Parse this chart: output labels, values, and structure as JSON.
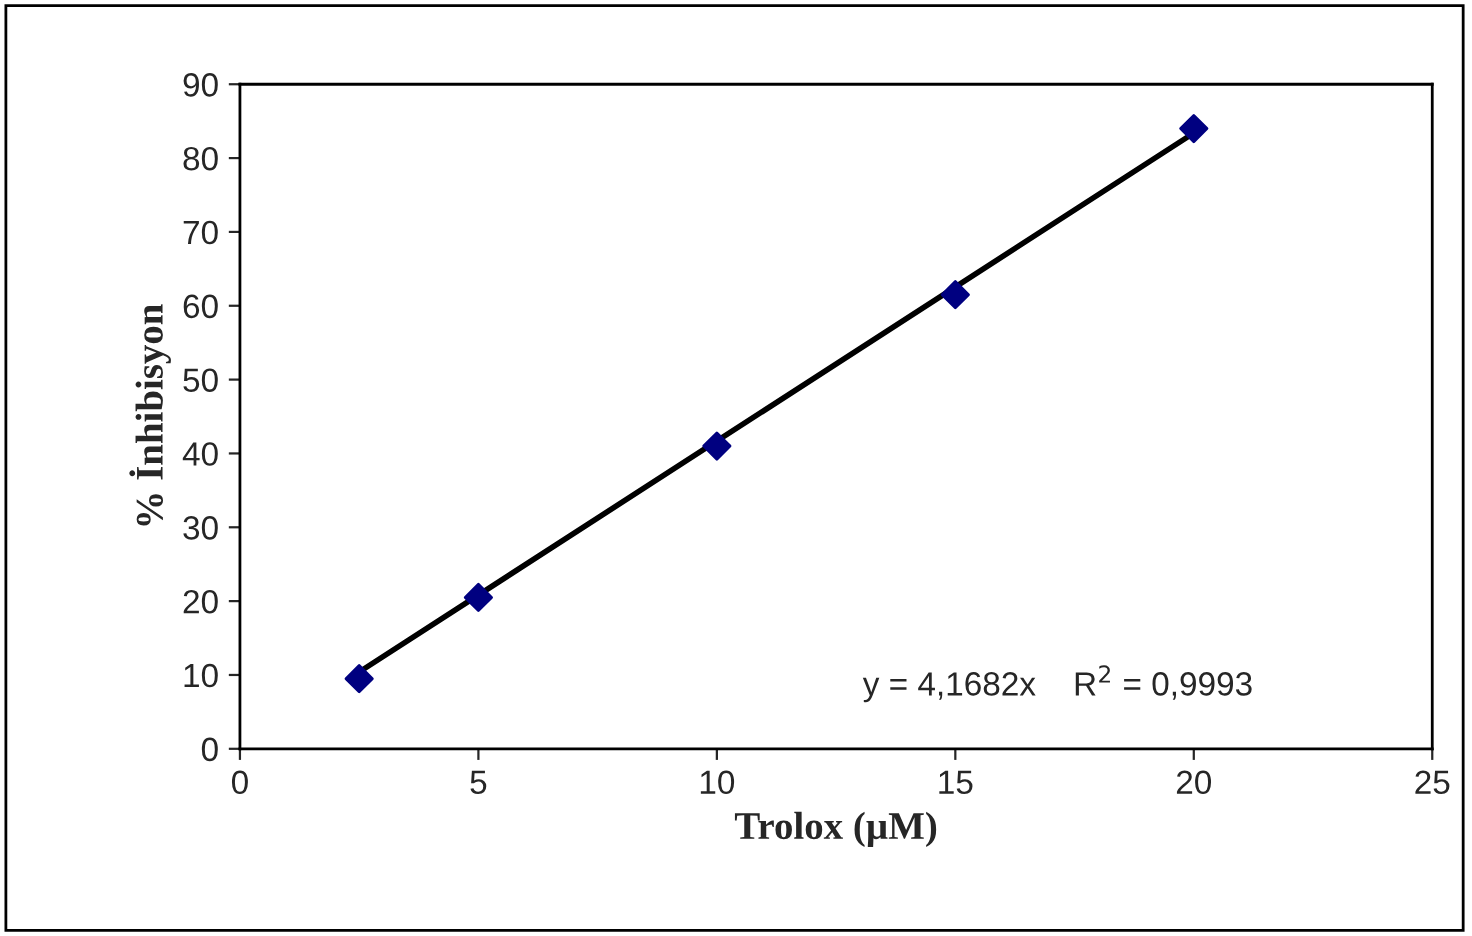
{
  "chart_data": {
    "type": "scatter",
    "xlabel": "Trolox (µM)",
    "ylabel": "% İnhibisyon",
    "series": [
      {
        "color": "#000080",
        "marker": "diamond",
        "x": [
          2.5,
          5,
          10,
          15,
          20
        ],
        "values": [
          9.5,
          20.5,
          41,
          61.5,
          84
        ]
      },
      {
        "type": "line",
        "color": "#000000",
        "marker": "none",
        "line_style": "solid",
        "x": [
          2.5,
          20
        ],
        "values": [
          10.4,
          83.4
        ]
      }
    ],
    "annotations": [
      "y = 4,1682x    R$^{2}$ = 0,9993"
    ],
    "xlim": [
      0,
      25
    ],
    "xticks": [
      0,
      5,
      10,
      15,
      20,
      25
    ],
    "ylim": [
      0,
      90
    ],
    "yticks": [
      0,
      10,
      20,
      30,
      40,
      50,
      60,
      70,
      80,
      90
    ],
    "grid": false,
    "legend": false
  }
}
